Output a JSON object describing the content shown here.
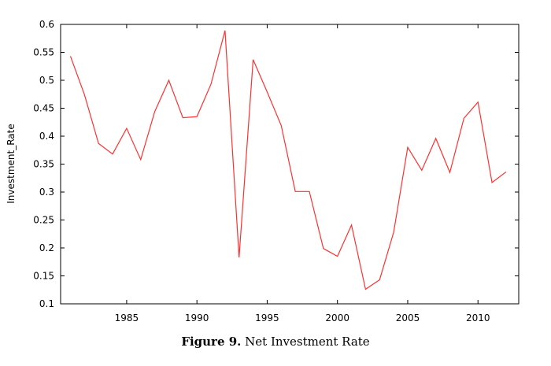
{
  "chart_data": {
    "type": "line",
    "title": "",
    "xlabel": "",
    "ylabel": "Investment_Rate",
    "xlim": [
      1980.3,
      1982.9
    ],
    "ylim": [
      0.1,
      0.6
    ],
    "grid": false,
    "x_ticks": [
      1985,
      1990,
      1995,
      2000,
      2005,
      2010
    ],
    "y_ticks": [
      0.1,
      0.15,
      0.2,
      0.25,
      0.3,
      0.35,
      0.4,
      0.45,
      0.5,
      0.55,
      0.6
    ],
    "series": [
      {
        "color": "#ff3030",
        "x": [
          1981,
          1982,
          1983,
          1984,
          1985,
          1986,
          1987,
          1988,
          1989,
          1990,
          1991,
          1992,
          1993,
          1994,
          1995,
          1996,
          1997,
          1998,
          1999,
          2000,
          2001,
          2002,
          2003,
          2004,
          2005,
          2006,
          2007,
          2008,
          2009,
          2010,
          2011,
          2012
        ],
        "values": [
          0.543,
          0.474,
          0.387,
          0.368,
          0.414,
          0.358,
          0.444,
          0.5,
          0.433,
          0.435,
          0.493,
          0.589,
          0.183,
          0.537,
          0.479,
          0.419,
          0.301,
          0.301,
          0.199,
          0.185,
          0.241,
          0.126,
          0.143,
          0.228,
          0.38,
          0.339,
          0.396,
          0.335,
          0.432,
          0.461,
          0.317,
          0.336
        ]
      }
    ]
  },
  "caption": {
    "label": "Figure 9.",
    "text": " Net Investment Rate"
  }
}
